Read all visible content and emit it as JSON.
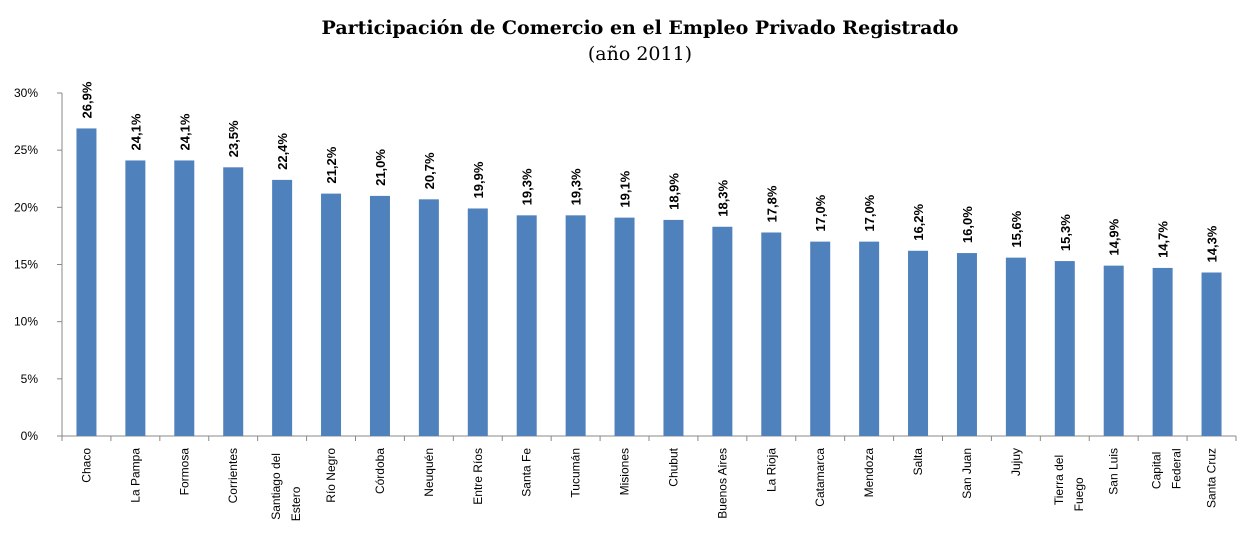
{
  "chart_data": {
    "type": "bar",
    "title": "Participación de Comercio en el Empleo Privado Registrado",
    "subtitle": "(año 2011)",
    "categories": [
      "Chaco",
      "La Pampa",
      "Formosa",
      "Corrientes",
      "Santiago del Estero",
      "Río Negro",
      "Córdoba",
      "Neuquén",
      "Entre Ríos",
      "Santa Fe",
      "Tucumán",
      "Misiones",
      "Chubut",
      "Buenos Aires",
      "La Rioja",
      "Catamarca",
      "Mendoza",
      "Salta",
      "San Juan",
      "Jujuy",
      "Tierra del Fuego",
      "San Luis",
      "Capital Federal",
      "Santa Cruz"
    ],
    "values": [
      26.9,
      24.1,
      24.1,
      23.5,
      22.4,
      21.2,
      21.0,
      20.7,
      19.9,
      19.3,
      19.3,
      19.1,
      18.9,
      18.3,
      17.8,
      17.0,
      17.0,
      16.2,
      16.0,
      15.6,
      15.3,
      14.9,
      14.7,
      14.3
    ],
    "value_labels": [
      "26,9%",
      "24,1%",
      "24,1%",
      "23,5%",
      "22,4%",
      "21,2%",
      "21,0%",
      "20,7%",
      "19,9%",
      "19,3%",
      "19,3%",
      "19,1%",
      "18,9%",
      "18,3%",
      "17,8%",
      "17,0%",
      "17,0%",
      "16,2%",
      "16,0%",
      "15,6%",
      "15,3%",
      "14,9%",
      "14,7%",
      "14,3%"
    ],
    "color": "#4f81bd",
    "ylim": [
      0,
      30
    ],
    "yticks": [
      {
        "value": 0,
        "label": "0%"
      },
      {
        "value": 5,
        "label": "5%"
      },
      {
        "value": 10,
        "label": "10%"
      },
      {
        "value": 15,
        "label": "15%"
      },
      {
        "value": 20,
        "label": "20%"
      },
      {
        "value": 25,
        "label": "25%"
      },
      {
        "value": 30,
        "label": "30%"
      }
    ],
    "grid": false
  }
}
